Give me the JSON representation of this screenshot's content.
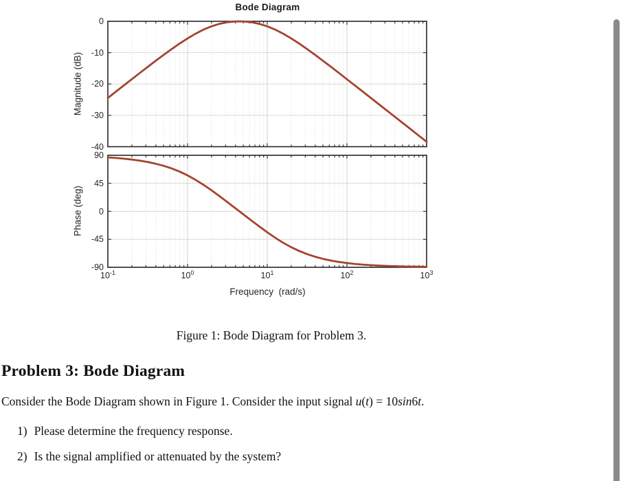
{
  "chart": {
    "title": "Bode Diagram",
    "xlabel": "Frequency  (rad/s)",
    "mag_ylabel": "Magnitude (dB)",
    "phase_ylabel": "Phase (deg)",
    "curve_color": "#a3432d",
    "axis_color": "#262626",
    "grid_major_color": "#d0d0d0",
    "grid_minor_color": "#dcdcdc",
    "mag_ytick_labels": [
      "0",
      "-10",
      "-20",
      "-30",
      "-40"
    ],
    "phase_ytick_labels": [
      "90",
      "45",
      "0",
      "-45",
      "-90"
    ],
    "x_ticks": [
      {
        "base": "10",
        "exp": "-1"
      },
      {
        "base": "10",
        "exp": "0"
      },
      {
        "base": "10",
        "exp": "1"
      },
      {
        "base": "10",
        "exp": "2"
      },
      {
        "base": "10",
        "exp": "3"
      }
    ]
  },
  "chart_data": {
    "type": "line",
    "title": "Bode Diagram",
    "xlabel": "Frequency (rad/s)",
    "x_scale": "log",
    "x_range_log10": [
      -1,
      3
    ],
    "grid": true,
    "legend": "none",
    "subplots": [
      {
        "name": "magnitude",
        "ylabel": "Magnitude (dB)",
        "ylim": [
          -40,
          0
        ],
        "yticks": [
          0,
          -10,
          -20,
          -30,
          -40
        ],
        "x_log10": [
          -1,
          -0.9,
          -0.8,
          -0.7,
          -0.6,
          -0.5,
          -0.4,
          -0.3,
          -0.2,
          -0.1,
          0,
          0.1,
          0.2,
          0.3,
          0.4,
          0.5,
          0.6,
          0.7,
          0.8,
          0.9,
          1,
          1.1,
          1.2,
          1.3,
          1.4,
          1.5,
          1.6,
          1.7,
          1.8,
          1.9,
          2,
          2.1,
          2.2,
          2.3,
          2.4,
          2.5,
          2.6,
          2.7,
          2.8,
          2.9,
          3
        ],
        "values": [
          -24.45,
          -22.45,
          -20.47,
          -18.48,
          -16.51,
          -14.55,
          -12.61,
          -10.71,
          -8.87,
          -7.1,
          -5.45,
          -3.96,
          -2.66,
          -1.61,
          -0.82,
          -0.29,
          -0.04,
          -0.03,
          -0.29,
          -0.81,
          -1.6,
          -2.65,
          -3.94,
          -5.43,
          -7.09,
          -8.85,
          -10.7,
          -12.6,
          -14.53,
          -16.49,
          -18.47,
          -20.45,
          -22.44,
          -24.43,
          -26.43,
          -28.42,
          -30.42,
          -32.42,
          -34.42,
          -36.42,
          -38.42
        ]
      },
      {
        "name": "phase",
        "ylabel": "Phase (deg)",
        "ylim": [
          -90,
          90
        ],
        "yticks": [
          90,
          45,
          0,
          -45,
          -90
        ],
        "x_log10": [
          -1,
          -0.9,
          -0.8,
          -0.7,
          -0.6,
          -0.5,
          -0.4,
          -0.3,
          -0.2,
          -0.1,
          0,
          0.1,
          0.2,
          0.3,
          0.4,
          0.5,
          0.6,
          0.7,
          0.8,
          0.9,
          1,
          1.1,
          1.2,
          1.3,
          1.4,
          1.5,
          1.6,
          1.7,
          1.8,
          1.9,
          2,
          2.1,
          2.2,
          2.3,
          2.4,
          2.5,
          2.6,
          2.7,
          2.8,
          2.9,
          3
        ],
        "values": [
          86.57,
          85.68,
          84.56,
          83.16,
          81.4,
          79.2,
          76.46,
          73.06,
          68.88,
          63.8,
          57.72,
          50.63,
          42.6,
          33.78,
          24.43,
          14.76,
          4.96,
          -4.88,
          -14.66,
          -24.33,
          -33.69,
          -42.52,
          -50.56,
          -57.65,
          -63.75,
          -68.83,
          -73.02,
          -76.43,
          -79.18,
          -81.39,
          -83.14,
          -84.55,
          -85.67,
          -86.56,
          -87.26,
          -87.83,
          -88.27,
          -88.63,
          -88.91,
          -89.14,
          -89.32
        ]
      }
    ]
  },
  "caption": {
    "text": "Figure 1: Bode Diagram for Problem 3."
  },
  "problem": {
    "heading": "Problem 3: Bode Diagram",
    "intro": "Consider the Bode Diagram shown in Figure 1. Consider the input signal ",
    "math": {
      "u": "u",
      "open": "(",
      "t1": "t",
      "close": ")",
      "equals": " = ",
      "ten": "10",
      "sin": "sin",
      "six": "6",
      "t2": "t",
      "period": "."
    },
    "items": [
      {
        "num": "1)",
        "text": "Please determine the frequency response."
      },
      {
        "num": "2)",
        "text": "Is the signal amplified or attenuated by the system?"
      }
    ]
  },
  "scrollbar": {
    "color": "#8a8a8a"
  }
}
